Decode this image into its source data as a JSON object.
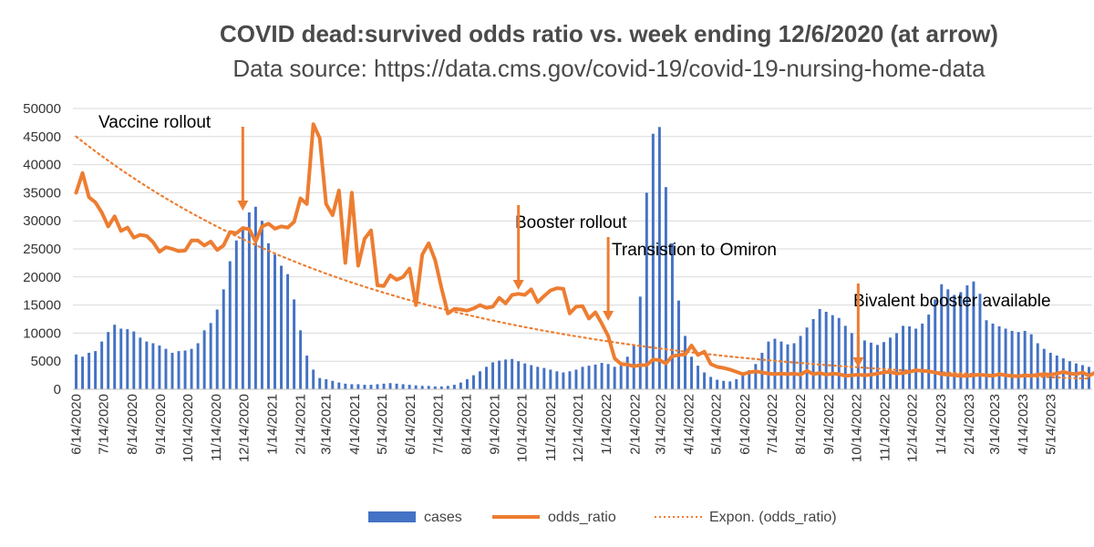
{
  "colors": {
    "cases": "#4472c4",
    "odds_ratio": "#ed7d31",
    "trend": "#ed7d31",
    "arrow": "#ed7d31"
  },
  "chart_data": {
    "type": "bar",
    "title": "COVID dead:survived odds ratio vs. week ending 12/6/2020 (at arrow)",
    "subtitle": "Data source: https://data.cms.gov/covid-19/covid-19-nursing-home-data",
    "ylim": [
      0,
      50000
    ],
    "yticks": [
      "50000",
      "45000",
      "40000",
      "35000",
      "30000",
      "25000",
      "20000",
      "15000",
      "10000",
      "5000",
      "0"
    ],
    "grid": true,
    "legend_position": "bottom",
    "x_start": "6/14/2020",
    "x_tick_labels": [
      "6/14/2020",
      "7/14/2020",
      "8/14/2020",
      "9/14/2020",
      "10/14/2020",
      "11/14/2020",
      "12/14/2020",
      "1/14/2021",
      "2/14/2021",
      "3/14/2021",
      "4/14/2021",
      "5/14/2021",
      "6/14/2021",
      "7/14/2021",
      "8/14/2021",
      "9/14/2021",
      "10/14/2021",
      "11/14/2021",
      "12/14/2021",
      "1/14/2022",
      "2/14/2022",
      "3/14/2022",
      "4/14/2022",
      "5/14/2022",
      "6/14/2022",
      "7/14/2022",
      "8/14/2022",
      "9/14/2022",
      "10/14/2022",
      "11/14/2022",
      "12/14/2022",
      "1/14/2023",
      "2/14/2023",
      "3/14/2023",
      "4/14/2023",
      "5/14/2023"
    ],
    "series": [
      {
        "name": "cases",
        "type": "bar",
        "values": [
          6200,
          5800,
          6500,
          6800,
          8500,
          10200,
          11500,
          10800,
          10700,
          10300,
          9200,
          8500,
          8200,
          7800,
          7200,
          6500,
          6800,
          6900,
          7200,
          8200,
          10500,
          11800,
          14200,
          17800,
          22800,
          26500,
          29000,
          31500,
          32500,
          30000,
          26000,
          24000,
          22000,
          20500,
          16000,
          10500,
          6000,
          3500,
          2000,
          1800,
          1500,
          1200,
          1000,
          900,
          900,
          800,
          800,
          900,
          1000,
          1100,
          1000,
          900,
          800,
          700,
          600,
          600,
          500,
          500,
          600,
          800,
          1200,
          1800,
          2500,
          3200,
          4000,
          4800,
          5100,
          5300,
          5400,
          5000,
          4600,
          4300,
          4000,
          3800,
          3500,
          3200,
          3000,
          3200,
          3500,
          4000,
          4200,
          4400,
          4700,
          4500,
          4000,
          4200,
          5800,
          8000,
          16500,
          35000,
          45500,
          46700,
          36000,
          26000,
          15800,
          9500,
          5800,
          4200,
          3000,
          2200,
          1700,
          1500,
          1400,
          1800,
          2600,
          3400,
          4500,
          6500,
          8500,
          9000,
          8500,
          8000,
          8200,
          9500,
          11000,
          12500,
          14300,
          13800,
          13200,
          12700,
          11300,
          10000,
          9400,
          8700,
          8300,
          7900,
          8400,
          9200,
          10000,
          11300,
          11200,
          10800,
          11700,
          13300,
          16000,
          18700,
          17800,
          16800,
          17300,
          18500,
          19200,
          17000,
          12300,
          11700,
          11200,
          10800,
          10400,
          10200,
          10400,
          9800,
          8200,
          7200,
          6500,
          6000,
          5500,
          5000,
          4600,
          4300,
          4000
        ]
      },
      {
        "name": "odds_ratio",
        "type": "line",
        "values": [
          35000,
          38500,
          34200,
          33300,
          31500,
          29000,
          30800,
          28200,
          28800,
          27000,
          27500,
          27300,
          26200,
          24500,
          25300,
          25000,
          24600,
          24700,
          26500,
          26500,
          25600,
          26300,
          24800,
          25600,
          28000,
          27800,
          28700,
          28500,
          26300,
          29000,
          29500,
          28600,
          29000,
          28800,
          29800,
          34000,
          33000,
          47200,
          44700,
          33000,
          31000,
          35400,
          22500,
          35000,
          22000,
          26800,
          28300,
          18500,
          18400,
          20300,
          19500,
          20000,
          21500,
          15000,
          24000,
          26000,
          23000,
          18000,
          13500,
          14300,
          14200,
          14000,
          14400,
          15000,
          14500,
          14700,
          16300,
          15300,
          16800,
          17000,
          16800,
          17800,
          15500,
          16600,
          17600,
          18000,
          17900,
          13500,
          14700,
          14800,
          12600,
          13700,
          11700,
          9500,
          5500,
          4500,
          4400,
          4100,
          4300,
          4300,
          5300,
          5200,
          4600,
          5900,
          6100,
          6200,
          7800,
          6100,
          6700,
          4500,
          4000,
          3800,
          3500,
          3100,
          2700,
          3000,
          3200,
          3000,
          2800,
          2700,
          2800,
          2700,
          2800,
          2600,
          3300,
          2700,
          2900,
          2600,
          2800,
          2700,
          2400,
          2500,
          2600,
          2500,
          2600,
          2800,
          3000,
          3100,
          2800,
          2900,
          3100,
          3400,
          3300,
          3200,
          3000,
          2700,
          2600,
          2500,
          2400,
          2400,
          2500,
          2600,
          2500,
          2400,
          2700,
          2500,
          2400,
          2300,
          2500,
          2400,
          2600,
          2700,
          2600,
          2800,
          3100,
          2800,
          2700,
          3000,
          2400,
          3000,
          2600,
          3000,
          3200
        ]
      },
      {
        "name": "Expon. (odds_ratio)",
        "type": "trendline",
        "fit": "exponential",
        "start_value": 45000,
        "end_value": 1900
      }
    ],
    "annotations": [
      {
        "text": "Vaccine rollout",
        "arrow_week": 26
      },
      {
        "text": "Booster rollout",
        "arrow_week": 69
      },
      {
        "text": "Transistion to Omiron",
        "arrow_week": 83
      },
      {
        "text": "Bivalent booster available",
        "arrow_week": 122
      }
    ]
  }
}
